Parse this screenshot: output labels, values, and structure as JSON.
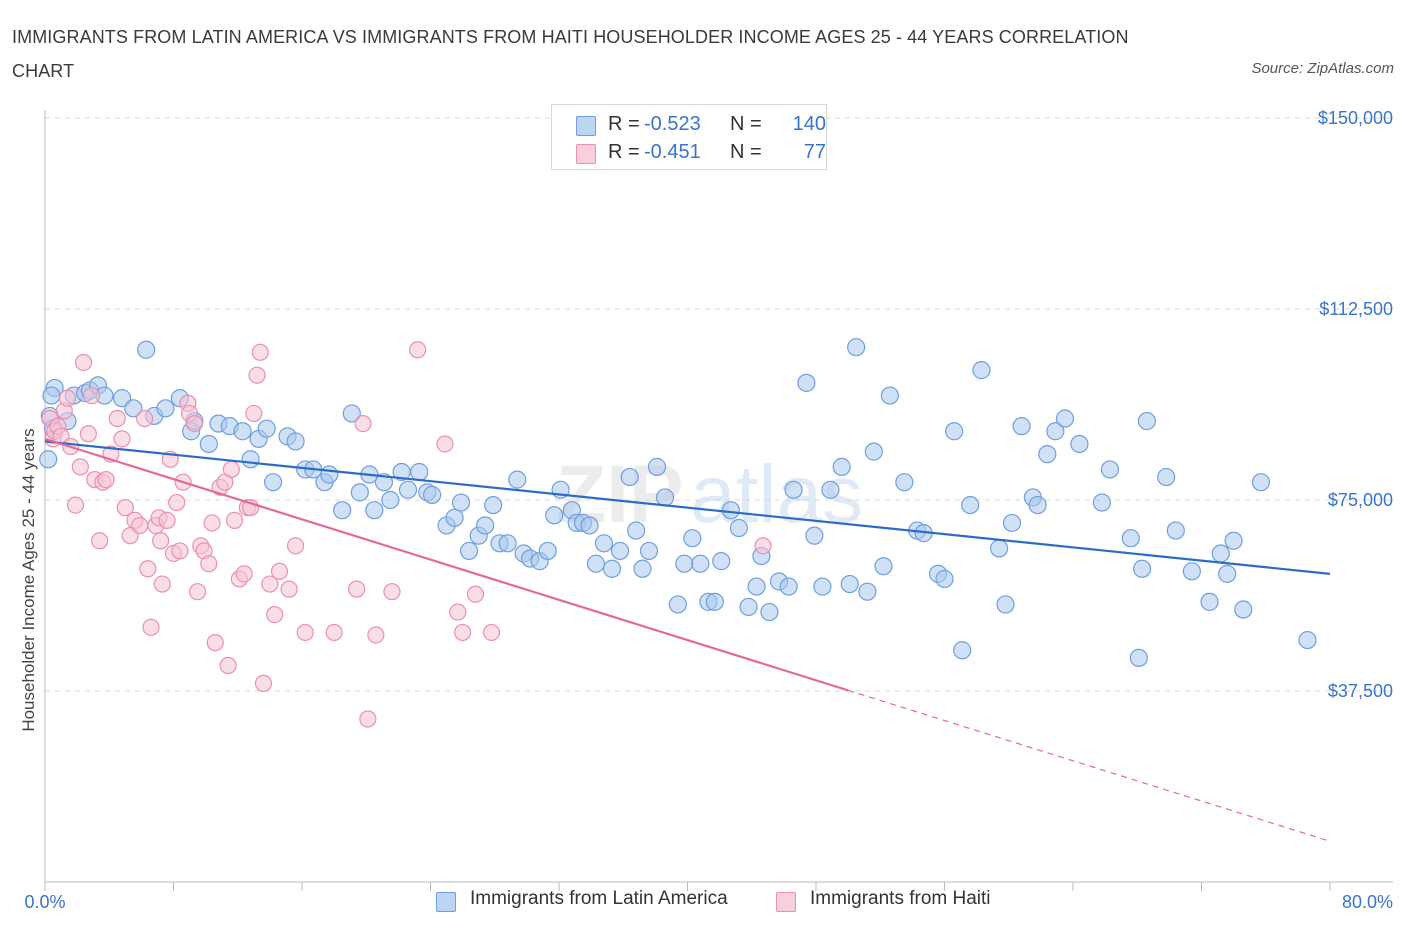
{
  "title": "IMMIGRANTS FROM LATIN AMERICA VS IMMIGRANTS FROM HAITI HOUSEHOLDER INCOME AGES 25 - 44 YEARS CORRELATION CHART",
  "source": "Source: ZipAtlas.com",
  "colors": {
    "blue_fill": "#a9c8ef",
    "blue_stroke": "#6f9fe0",
    "blue_line": "#2b6cc4",
    "pink_fill": "#f6c3d3",
    "pink_stroke": "#ec8fac",
    "pink_line": "#e2699a",
    "tick_label": "#3a74c9",
    "grid": "#d9d9d9"
  },
  "legend_top": [
    {
      "r_label": "R =",
      "r_value": "-0.523",
      "n_label": "N =",
      "n_value": "140"
    },
    {
      "r_label": "R =",
      "r_value": "-0.451",
      "n_label": "N =",
      "n_value": "77"
    }
  ],
  "legend_bottom": [
    "Immigrants from Latin America",
    "Immigrants from Haiti"
  ],
  "chart_data": {
    "type": "scatter",
    "title": "IMMIGRANTS FROM LATIN AMERICA VS IMMIGRANTS FROM HAITI HOUSEHOLDER INCOME AGES 25 - 44 YEARS CORRELATION CHART",
    "xlabel": "",
    "ylabel": "Householder Income Ages 25 - 44 years",
    "xlim": [
      0,
      80
    ],
    "ylim": [
      0,
      150000
    ],
    "x_tick_labels": [
      "0.0%",
      "80.0%"
    ],
    "y_ticks": [
      37500,
      75000,
      112500,
      150000
    ],
    "y_tick_labels": [
      "$37,500",
      "$75,000",
      "$112,500",
      "$150,000"
    ],
    "grid": "horizontal dashed",
    "legend_position": "top-center",
    "watermark": "ZIPatlas",
    "series": [
      {
        "name": "Immigrants from Latin America",
        "color": "blue",
        "trend": {
          "x": [
            0,
            80
          ],
          "y": [
            86500,
            60500
          ],
          "dashed_from": null
        },
        "points": [
          [
            0.6,
            97000
          ],
          [
            0.4,
            95500
          ],
          [
            0.3,
            91500
          ],
          [
            0.5,
            89000
          ],
          [
            0.2,
            83000
          ],
          [
            1.8,
            95500
          ],
          [
            2.5,
            96000
          ],
          [
            2.8,
            96500
          ],
          [
            3.3,
            97500
          ],
          [
            3.7,
            95500
          ],
          [
            1.4,
            90500
          ],
          [
            4.8,
            95000
          ],
          [
            5.5,
            93000
          ],
          [
            6.3,
            104500
          ],
          [
            6.8,
            91500
          ],
          [
            7.5,
            93000
          ],
          [
            8.4,
            95000
          ],
          [
            9.1,
            88500
          ],
          [
            9.3,
            90500
          ],
          [
            10.2,
            86000
          ],
          [
            10.8,
            90000
          ],
          [
            11.5,
            89500
          ],
          [
            12.3,
            88500
          ],
          [
            12.8,
            83000
          ],
          [
            13.3,
            87000
          ],
          [
            13.8,
            89000
          ],
          [
            14.2,
            78500
          ],
          [
            15.1,
            87500
          ],
          [
            15.6,
            86500
          ],
          [
            16.2,
            81000
          ],
          [
            16.7,
            81000
          ],
          [
            17.4,
            78500
          ],
          [
            17.7,
            80000
          ],
          [
            18.5,
            73000
          ],
          [
            19.1,
            92000
          ],
          [
            19.6,
            76500
          ],
          [
            20.2,
            80000
          ],
          [
            20.5,
            73000
          ],
          [
            21.1,
            78500
          ],
          [
            21.5,
            75000
          ],
          [
            22.2,
            80500
          ],
          [
            22.6,
            77000
          ],
          [
            23.3,
            80500
          ],
          [
            23.8,
            76500
          ],
          [
            24.1,
            76000
          ],
          [
            25.0,
            70000
          ],
          [
            25.5,
            71500
          ],
          [
            25.9,
            74500
          ],
          [
            26.4,
            65000
          ],
          [
            27.0,
            68000
          ],
          [
            27.4,
            70000
          ],
          [
            27.9,
            74000
          ],
          [
            28.3,
            66500
          ],
          [
            28.8,
            66500
          ],
          [
            29.4,
            79000
          ],
          [
            29.8,
            64500
          ],
          [
            30.2,
            63500
          ],
          [
            30.8,
            63000
          ],
          [
            31.3,
            65000
          ],
          [
            31.7,
            72000
          ],
          [
            32.1,
            77000
          ],
          [
            32.8,
            73000
          ],
          [
            33.1,
            70500
          ],
          [
            33.5,
            70500
          ],
          [
            33.9,
            70000
          ],
          [
            34.3,
            62500
          ],
          [
            34.8,
            66500
          ],
          [
            35.3,
            61500
          ],
          [
            35.8,
            65000
          ],
          [
            36.4,
            79500
          ],
          [
            36.8,
            69000
          ],
          [
            37.2,
            61500
          ],
          [
            37.6,
            65000
          ],
          [
            38.1,
            81500
          ],
          [
            38.6,
            75500
          ],
          [
            39.4,
            54500
          ],
          [
            39.8,
            62500
          ],
          [
            40.3,
            67500
          ],
          [
            40.8,
            62500
          ],
          [
            41.3,
            55000
          ],
          [
            41.7,
            55000
          ],
          [
            42.1,
            63000
          ],
          [
            42.7,
            73000
          ],
          [
            43.2,
            69500
          ],
          [
            43.8,
            54000
          ],
          [
            44.3,
            58000
          ],
          [
            44.6,
            64000
          ],
          [
            45.1,
            53000
          ],
          [
            45.7,
            59000
          ],
          [
            46.3,
            58000
          ],
          [
            46.6,
            77000
          ],
          [
            47.4,
            98000
          ],
          [
            47.9,
            68000
          ],
          [
            48.4,
            58000
          ],
          [
            48.9,
            77000
          ],
          [
            49.6,
            81500
          ],
          [
            50.1,
            58500
          ],
          [
            50.5,
            105000
          ],
          [
            51.2,
            57000
          ],
          [
            51.6,
            84500
          ],
          [
            52.2,
            62000
          ],
          [
            52.6,
            95500
          ],
          [
            53.5,
            78500
          ],
          [
            54.3,
            69000
          ],
          [
            54.7,
            68500
          ],
          [
            55.6,
            60500
          ],
          [
            56.0,
            59500
          ],
          [
            56.6,
            88500
          ],
          [
            57.1,
            45500
          ],
          [
            57.6,
            74000
          ],
          [
            58.3,
            100500
          ],
          [
            59.4,
            65500
          ],
          [
            59.8,
            54500
          ],
          [
            60.2,
            70500
          ],
          [
            60.8,
            89500
          ],
          [
            61.5,
            75500
          ],
          [
            61.8,
            74000
          ],
          [
            62.4,
            84000
          ],
          [
            62.9,
            88500
          ],
          [
            63.5,
            91000
          ],
          [
            64.4,
            86000
          ],
          [
            65.8,
            74500
          ],
          [
            66.3,
            81000
          ],
          [
            67.6,
            67500
          ],
          [
            68.1,
            44000
          ],
          [
            68.3,
            61500
          ],
          [
            68.6,
            90500
          ],
          [
            69.8,
            79500
          ],
          [
            70.4,
            69000
          ],
          [
            71.4,
            61000
          ],
          [
            72.5,
            55000
          ],
          [
            73.2,
            64500
          ],
          [
            73.6,
            60500
          ],
          [
            74.0,
            67000
          ],
          [
            74.6,
            53500
          ],
          [
            75.7,
            78500
          ],
          [
            78.6,
            47500
          ]
        ]
      },
      {
        "name": "Immigrants from Haiti",
        "color": "pink",
        "trend": {
          "x": [
            0,
            80
          ],
          "y": [
            87000,
            8000
          ],
          "dashed_from": 50
        },
        "points": [
          [
            0.3,
            91000
          ],
          [
            0.5,
            87000
          ],
          [
            0.6,
            88500
          ],
          [
            0.8,
            89500
          ],
          [
            1.0,
            87500
          ],
          [
            1.2,
            92500
          ],
          [
            1.4,
            95000
          ],
          [
            1.6,
            85500
          ],
          [
            1.9,
            74000
          ],
          [
            2.2,
            81500
          ],
          [
            2.4,
            102000
          ],
          [
            2.7,
            88000
          ],
          [
            2.9,
            95500
          ],
          [
            3.1,
            79000
          ],
          [
            3.4,
            67000
          ],
          [
            3.6,
            78500
          ],
          [
            3.8,
            79000
          ],
          [
            4.1,
            84000
          ],
          [
            4.5,
            91000
          ],
          [
            4.8,
            87000
          ],
          [
            5.0,
            73500
          ],
          [
            5.3,
            68000
          ],
          [
            5.6,
            71000
          ],
          [
            5.9,
            70000
          ],
          [
            6.2,
            91000
          ],
          [
            6.4,
            61500
          ],
          [
            6.6,
            50000
          ],
          [
            6.9,
            70000
          ],
          [
            7.1,
            71500
          ],
          [
            7.2,
            67000
          ],
          [
            7.3,
            58500
          ],
          [
            7.6,
            71000
          ],
          [
            7.8,
            83000
          ],
          [
            8.0,
            64500
          ],
          [
            8.2,
            74500
          ],
          [
            8.4,
            65000
          ],
          [
            8.6,
            78500
          ],
          [
            8.9,
            94000
          ],
          [
            9.0,
            92000
          ],
          [
            9.3,
            90000
          ],
          [
            9.5,
            57000
          ],
          [
            9.7,
            66000
          ],
          [
            9.9,
            65000
          ],
          [
            10.2,
            62500
          ],
          [
            10.4,
            70500
          ],
          [
            10.6,
            47000
          ],
          [
            10.9,
            77500
          ],
          [
            11.2,
            78500
          ],
          [
            11.4,
            42500
          ],
          [
            11.6,
            81000
          ],
          [
            11.8,
            71000
          ],
          [
            12.1,
            59500
          ],
          [
            12.4,
            60500
          ],
          [
            12.6,
            73500
          ],
          [
            12.8,
            73500
          ],
          [
            13.0,
            92000
          ],
          [
            13.2,
            99500
          ],
          [
            13.4,
            104000
          ],
          [
            13.6,
            39000
          ],
          [
            14.0,
            58500
          ],
          [
            14.3,
            52500
          ],
          [
            14.6,
            61000
          ],
          [
            15.2,
            57500
          ],
          [
            15.6,
            66000
          ],
          [
            16.2,
            49000
          ],
          [
            18.0,
            49000
          ],
          [
            19.4,
            57500
          ],
          [
            19.8,
            90000
          ],
          [
            20.1,
            32000
          ],
          [
            20.6,
            48500
          ],
          [
            21.6,
            57000
          ],
          [
            23.2,
            104500
          ],
          [
            24.9,
            86000
          ],
          [
            25.7,
            53000
          ],
          [
            26.0,
            49000
          ],
          [
            26.8,
            56500
          ],
          [
            27.8,
            49000
          ],
          [
            44.7,
            66000
          ]
        ]
      }
    ]
  }
}
